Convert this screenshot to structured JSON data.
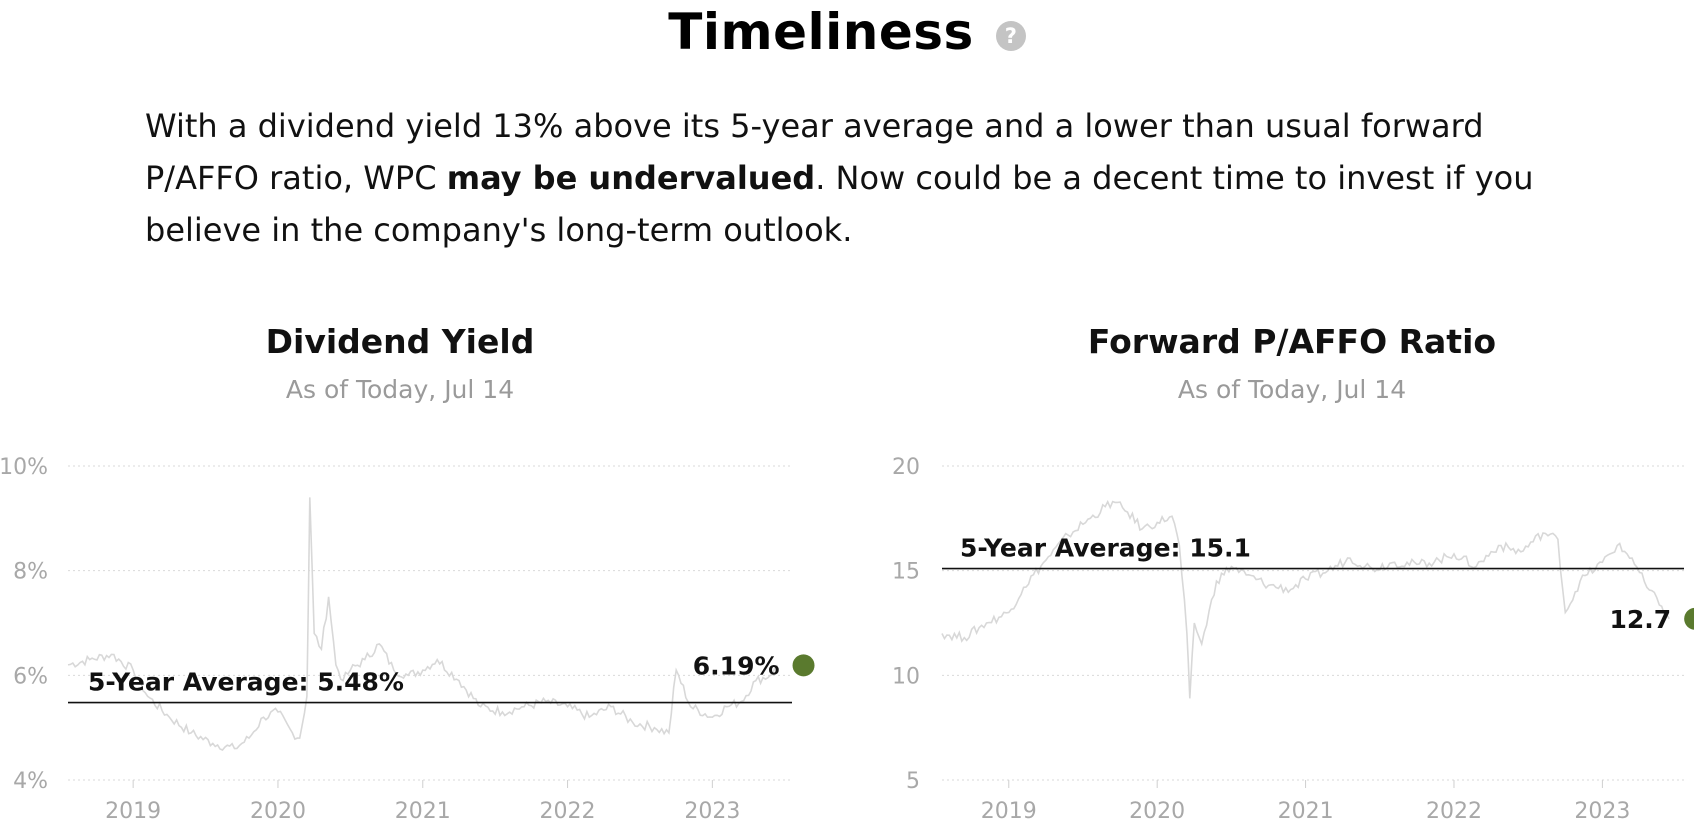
{
  "page": {
    "title": "Timeliness",
    "help_icon": "question-circle-icon",
    "summary": {
      "before": "With a dividend yield 13% above its 5-year average and a lower than usual forward P/AFFO ratio, WPC ",
      "emphasis": "may be undervalued",
      "after": ". Now could be a decent time to invest if you believe in the company's long-term outlook."
    }
  },
  "colors": {
    "line": "#d8d8d8",
    "average": "#111111",
    "current_dot": "#5a7a2e",
    "grid": "#d9d9d9",
    "axis_text": "#a8a8a8"
  },
  "chart_data": [
    {
      "type": "line",
      "title": "Dividend Yield",
      "subtitle": "As of Today, Jul 14",
      "y_ticks": [
        "4%",
        "6%",
        "8%",
        "10%"
      ],
      "ylim": [
        4,
        10
      ],
      "x_ticks": [
        "2019",
        "2020",
        "2021",
        "2022",
        "2023"
      ],
      "x": [
        2018.55,
        2018.7,
        2018.85,
        2019.0,
        2019.1,
        2019.25,
        2019.4,
        2019.55,
        2019.7,
        2019.8,
        2019.9,
        2020.0,
        2020.1,
        2020.15,
        2020.2,
        2020.22,
        2020.25,
        2020.3,
        2020.35,
        2020.4,
        2020.45,
        2020.5,
        2020.6,
        2020.7,
        2020.8,
        2020.9,
        2021.0,
        2021.1,
        2021.25,
        2021.4,
        2021.55,
        2021.7,
        2021.85,
        2022.0,
        2022.15,
        2022.3,
        2022.45,
        2022.6,
        2022.7,
        2022.75,
        2022.85,
        2023.0,
        2023.1,
        2023.2,
        2023.3,
        2023.4,
        2023.45
      ],
      "values": [
        6.2,
        6.3,
        6.4,
        6.1,
        5.6,
        5.2,
        4.9,
        4.7,
        4.6,
        4.8,
        5.2,
        5.3,
        4.9,
        4.8,
        5.6,
        9.4,
        6.8,
        6.5,
        7.5,
        6.2,
        5.9,
        6.1,
        6.3,
        6.6,
        6.1,
        6.0,
        6.1,
        6.3,
        5.9,
        5.4,
        5.3,
        5.4,
        5.5,
        5.4,
        5.2,
        5.4,
        5.1,
        5.0,
        4.9,
        6.1,
        5.4,
        5.2,
        5.4,
        5.5,
        5.9,
        6.0,
        6.19
      ],
      "series_name": "",
      "average_label": "5-Year Average: 5.48%",
      "average": 5.48,
      "current_label": "6.19%",
      "current_value": 6.19,
      "x_range": [
        2018.55,
        2023.55
      ],
      "grid": true
    },
    {
      "type": "line",
      "title": "Forward P/AFFO Ratio",
      "subtitle": "As of Today, Jul 14",
      "y_ticks": [
        "5",
        "10",
        "15",
        "20"
      ],
      "ylim": [
        5,
        20
      ],
      "x_ticks": [
        "2019",
        "2020",
        "2021",
        "2022",
        "2023"
      ],
      "x": [
        2018.55,
        2018.7,
        2018.85,
        2019.0,
        2019.1,
        2019.25,
        2019.4,
        2019.55,
        2019.7,
        2019.8,
        2019.9,
        2020.0,
        2020.1,
        2020.15,
        2020.2,
        2020.22,
        2020.25,
        2020.3,
        2020.4,
        2020.5,
        2020.6,
        2020.75,
        2020.9,
        2021.0,
        2021.15,
        2021.3,
        2021.45,
        2021.6,
        2021.75,
        2021.9,
        2022.0,
        2022.15,
        2022.3,
        2022.45,
        2022.6,
        2022.7,
        2022.75,
        2022.85,
        2023.0,
        2023.1,
        2023.2,
        2023.3,
        2023.4,
        2023.45
      ],
      "values": [
        12.0,
        11.8,
        12.5,
        13.0,
        14.2,
        15.5,
        16.7,
        17.5,
        18.3,
        17.8,
        17.0,
        17.3,
        17.6,
        16.2,
        12.0,
        8.9,
        12.5,
        11.5,
        14.5,
        15.2,
        14.8,
        14.3,
        14.1,
        14.6,
        15.0,
        15.6,
        15.1,
        15.4,
        15.3,
        15.5,
        15.8,
        15.2,
        16.2,
        15.9,
        16.8,
        16.5,
        13.0,
        14.5,
        15.4,
        16.2,
        15.6,
        14.2,
        13.3,
        12.7
      ],
      "series_name": "",
      "average_label": "5-Year Average: 15.1",
      "average": 15.1,
      "current_label": "12.7",
      "current_value": 12.7,
      "x_range": [
        2018.55,
        2023.55
      ],
      "grid": true
    }
  ]
}
